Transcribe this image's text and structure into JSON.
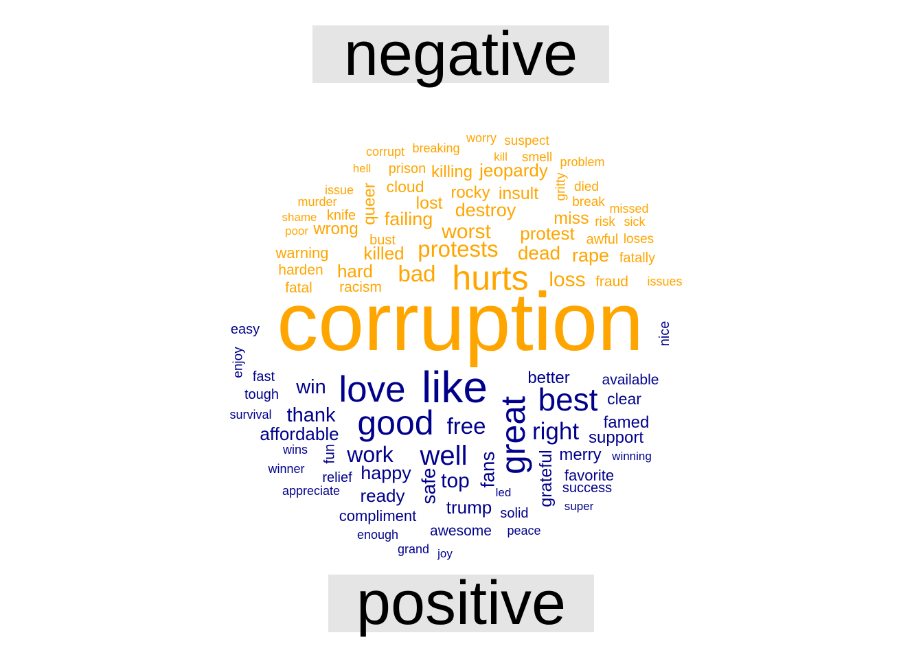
{
  "chart_data": {
    "type": "wordcloud",
    "groups": [
      {
        "name": "negative",
        "color": "#FFA500"
      },
      {
        "name": "positive",
        "color": "#00008B"
      }
    ],
    "words": {
      "negative": [
        "corruption",
        "hurts",
        "protests",
        "worst",
        "bad",
        "destroy",
        "loss",
        "failing",
        "killed",
        "dead",
        "rape",
        "protest",
        "hard",
        "lost",
        "miss",
        "queer",
        "jeopardy",
        "insult",
        "rocky",
        "killing",
        "cloud",
        "wrong",
        "warning",
        "racism",
        "harden",
        "fatal",
        "knife",
        "bust",
        "prison",
        "fraud",
        "awful",
        "fatally",
        "loses",
        "risk",
        "sick",
        "missed",
        "break",
        "died",
        "gritty",
        "problem",
        "smell",
        "kill",
        "suspect",
        "worry",
        "breaking",
        "corrupt",
        "hell",
        "issue",
        "murder",
        "shame",
        "poor",
        "issues"
      ],
      "positive": [
        "like",
        "great",
        "love",
        "good",
        "best",
        "well",
        "free",
        "right",
        "work",
        "thank",
        "win",
        "affordable",
        "fans",
        "happy",
        "top",
        "safe",
        "trump",
        "better",
        "ready",
        "grateful",
        "merry",
        "favorite",
        "famed",
        "support",
        "clear",
        "available",
        "compliment",
        "success",
        "awesome",
        "fun",
        "relief",
        "solid",
        "fast",
        "tough",
        "easy",
        "nice",
        "enjoy",
        "survival",
        "wins",
        "winner",
        "appreciate",
        "enough",
        "led",
        "peace",
        "super",
        "winning",
        "grand",
        "joy"
      ]
    }
  }
}
